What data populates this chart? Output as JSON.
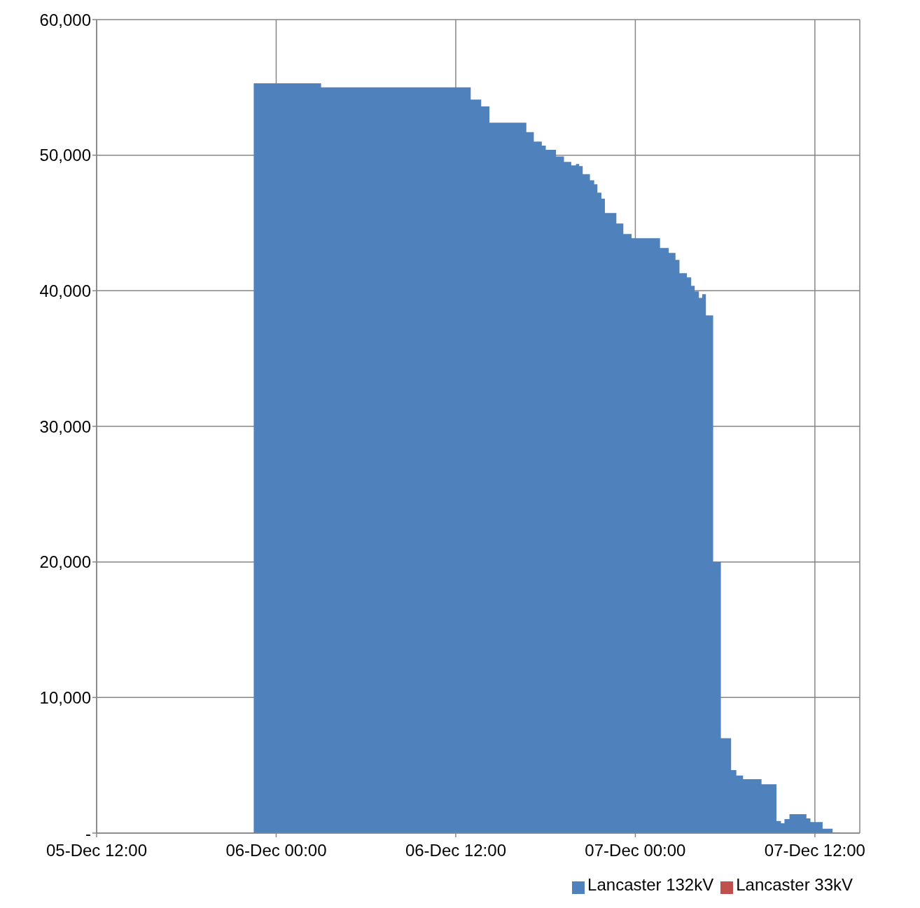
{
  "chart_data": {
    "type": "area",
    "x": [
      "--12-05T22:30",
      "--12-06T03:00",
      "--12-06T03:00",
      "--12-06T13:00",
      "--12-06T13:00",
      "--12-06T13:42",
      "--12-06T13:42",
      "--12-06T14:15",
      "--12-06T14:15",
      "--12-06T16:43",
      "--12-06T16:43",
      "--12-06T17:13",
      "--12-06T17:13",
      "--12-06T17:45",
      "--12-06T17:45",
      "--12-06T18:01",
      "--12-06T18:01",
      "--12-06T18:42",
      "--12-06T18:42",
      "--12-06T19:14",
      "--12-06T19:14",
      "--12-06T19:43",
      "--12-06T19:43",
      "--12-06T20:02",
      "--12-06T20:02",
      "--12-06T20:15",
      "--12-06T20:15",
      "--12-06T20:29",
      "--12-06T20:29",
      "--12-06T20:58",
      "--12-06T20:58",
      "--12-06T21:15",
      "--12-06T21:15",
      "--12-06T21:28",
      "--12-06T21:28",
      "--12-06T21:44",
      "--12-06T21:44",
      "--12-06T21:58",
      "--12-06T21:58",
      "--12-06T22:44",
      "--12-06T22:44",
      "--12-06T23:12",
      "--12-06T23:12",
      "--12-06T23:45",
      "--12-06T23:45",
      "--12-07T01:39",
      "--12-07T01:39",
      "--12-07T02:14",
      "--12-07T02:14",
      "--12-07T02:41",
      "--12-07T02:41",
      "--12-07T02:57",
      "--12-07T02:57",
      "--12-07T03:27",
      "--12-07T03:27",
      "--12-07T03:44",
      "--12-07T03:44",
      "--12-07T03:58",
      "--12-07T03:58",
      "--12-07T04:15",
      "--12-07T04:15",
      "--12-07T04:28",
      "--12-07T04:28",
      "--12-07T04:43",
      "--12-07T04:43",
      "--12-07T05:12",
      "--12-07T05:12",
      "--12-07T05:43",
      "--12-07T05:43",
      "--12-07T06:24",
      "--12-07T06:24",
      "--12-07T06:45",
      "--12-07T06:45",
      "--12-07T07:12",
      "--12-07T07:12",
      "--12-07T08:26",
      "--12-07T08:26",
      "--12-07T09:26",
      "--12-07T09:26",
      "--12-07T09:44",
      "--12-07T09:44",
      "--12-07T09:58",
      "--12-07T09:58",
      "--12-07T10:18",
      "--12-07T10:18",
      "--12-07T11:26",
      "--12-07T11:26",
      "--12-07T11:42",
      "--12-07T11:42",
      "--12-07T12:31",
      "--12-07T12:31",
      "--12-07T13:11",
      "--12-07T13:11",
      "--12-07T13:42",
      "--12-07T13:42"
    ],
    "series": [
      {
        "name": "Lancaster 132kV",
        "color": "#4f81bd",
        "values": [
          55300,
          55300,
          55000,
          55000,
          54100,
          54100,
          53600,
          53600,
          52400,
          52400,
          51700,
          51700,
          51000,
          51000,
          50700,
          50700,
          50400,
          50400,
          49900,
          49900,
          49500,
          49500,
          49250,
          49250,
          49350,
          49350,
          49200,
          49200,
          48600,
          48600,
          48150,
          48150,
          47850,
          47850,
          47230,
          47230,
          46800,
          46800,
          45740,
          45740,
          44960,
          44960,
          44190,
          44190,
          43880,
          43880,
          43150,
          43150,
          42790,
          42790,
          42270,
          42270,
          41290,
          41290,
          40980,
          40980,
          40360,
          40360,
          39950,
          39950,
          39480,
          39480,
          39740,
          39740,
          38190,
          38190,
          20000,
          20000,
          7000,
          7000,
          4650,
          4650,
          4250,
          4250,
          3980,
          3980,
          3600,
          3600,
          890,
          890,
          720,
          720,
          1030,
          1030,
          1400,
          1400,
          1080,
          1080,
          810,
          810,
          320,
          320,
          50,
          50,
          0
        ]
      },
      {
        "name": "Lancaster 33kV",
        "color": "#c0504d",
        "values": [
          null,
          null,
          null,
          null,
          null,
          null,
          null,
          null,
          null,
          null,
          null,
          null,
          null,
          null,
          null,
          null,
          null,
          null,
          null,
          null,
          null,
          null,
          null,
          null,
          null,
          null,
          null,
          null,
          null,
          null,
          null,
          null,
          null,
          null,
          null,
          null,
          null,
          null,
          null,
          null,
          null,
          null,
          null,
          null,
          null,
          null,
          null,
          null,
          null,
          null,
          null,
          null,
          null,
          null,
          null,
          null,
          null,
          null,
          null,
          null,
          null,
          null,
          null,
          null,
          null,
          null,
          null,
          null,
          null,
          null,
          null,
          null,
          null,
          null,
          null,
          null,
          null,
          null,
          null,
          null,
          null,
          null,
          null,
          null,
          null,
          null,
          null,
          null,
          null,
          null,
          null,
          null,
          null,
          null,
          null
        ]
      }
    ],
    "xlim": [
      "--12-05T12:00",
      "--12-07T15:00"
    ],
    "xticks": [
      {
        "value": "--12-05T12:00",
        "label": "05-Dec 12:00"
      },
      {
        "value": "--12-06T00:00",
        "label": "06-Dec 00:00"
      },
      {
        "value": "--12-06T12:00",
        "label": "06-Dec 12:00"
      },
      {
        "value": "--12-07T00:00",
        "label": "07-Dec 00:00"
      },
      {
        "value": "--12-07T12:00",
        "label": "07-Dec 12:00"
      }
    ],
    "ylim": [
      0,
      60000
    ],
    "yticks": [
      {
        "value": 0,
        "label": "-"
      },
      {
        "value": 10000,
        "label": "10,000"
      },
      {
        "value": 20000,
        "label": "20,000"
      },
      {
        "value": 30000,
        "label": "30,000"
      },
      {
        "value": 40000,
        "label": "40,000"
      },
      {
        "value": 50000,
        "label": "50,000"
      },
      {
        "value": 60000,
        "label": "60,000"
      }
    ],
    "grid": true,
    "legend": "bottom right"
  }
}
